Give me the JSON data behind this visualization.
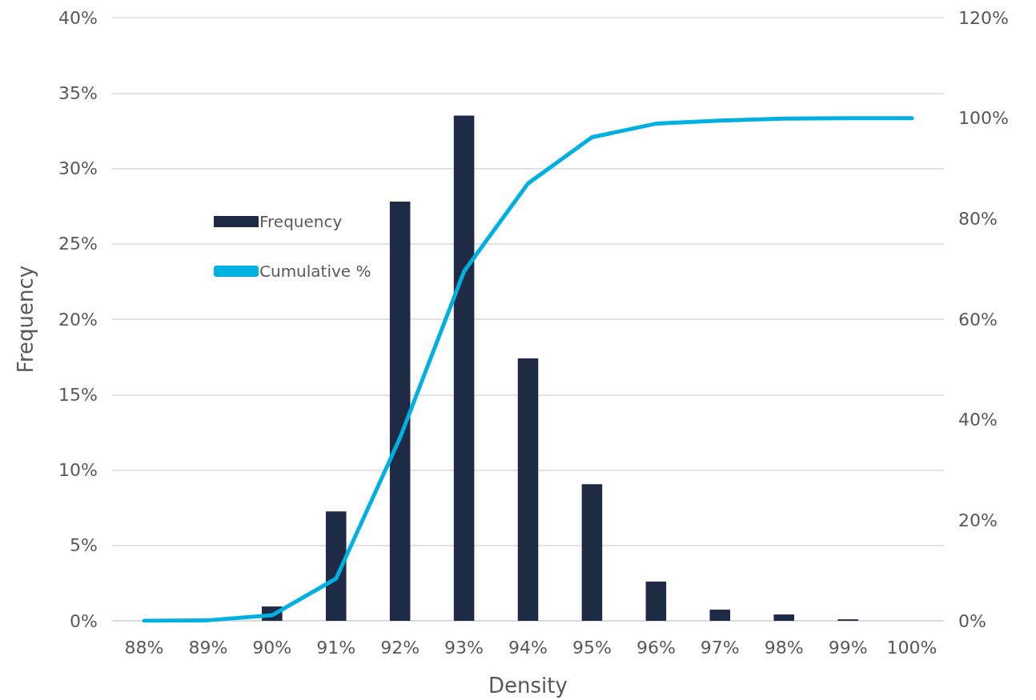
{
  "chart_data": {
    "type": "bar",
    "xlabel": "Density",
    "ylabel": "Frequency",
    "categories": [
      "88%",
      "89%",
      "90%",
      "91%",
      "92%",
      "93%",
      "94%",
      "95%",
      "96%",
      "97%",
      "98%",
      "99%",
      "100%"
    ],
    "series": [
      {
        "name": "Frequency",
        "color": "#1f2a44",
        "values": [
          0,
          0,
          0.95,
          7.26,
          27.8,
          33.5,
          17.4,
          9.06,
          2.6,
          0.74,
          0.42,
          0.1,
          0
        ]
      },
      {
        "name": "Cumulative %",
        "type": "line",
        "axis": "y2",
        "color": "#00b0e0",
        "values": [
          0,
          0.1,
          1.1,
          8.4,
          36.4,
          69.5,
          87,
          96.2,
          98.9,
          99.5,
          99.9,
          100,
          100
        ]
      }
    ],
    "ylim": [
      0,
      40
    ],
    "yticks": [
      {
        "value": 0,
        "label": "0%"
      },
      {
        "value": 5,
        "label": "5%"
      },
      {
        "value": 10,
        "label": "10%"
      },
      {
        "value": 15,
        "label": "15%"
      },
      {
        "value": 20,
        "label": "20%"
      },
      {
        "value": 25,
        "label": "25%"
      },
      {
        "value": 30,
        "label": "30%"
      },
      {
        "value": 35,
        "label": "35%"
      },
      {
        "value": 40,
        "label": "40%"
      }
    ],
    "y2lim": [
      0,
      120
    ],
    "y2ticks": [
      {
        "value": 0,
        "label": "0%"
      },
      {
        "value": 20,
        "label": "20%"
      },
      {
        "value": 40,
        "label": "40%"
      },
      {
        "value": 60,
        "label": "60%"
      },
      {
        "value": 80,
        "label": "80%"
      },
      {
        "value": 100,
        "label": "100%"
      },
      {
        "value": 120,
        "label": "120%"
      }
    ],
    "grid": "y",
    "legend": "top left",
    "marker": "none",
    "line_style": "solid"
  }
}
